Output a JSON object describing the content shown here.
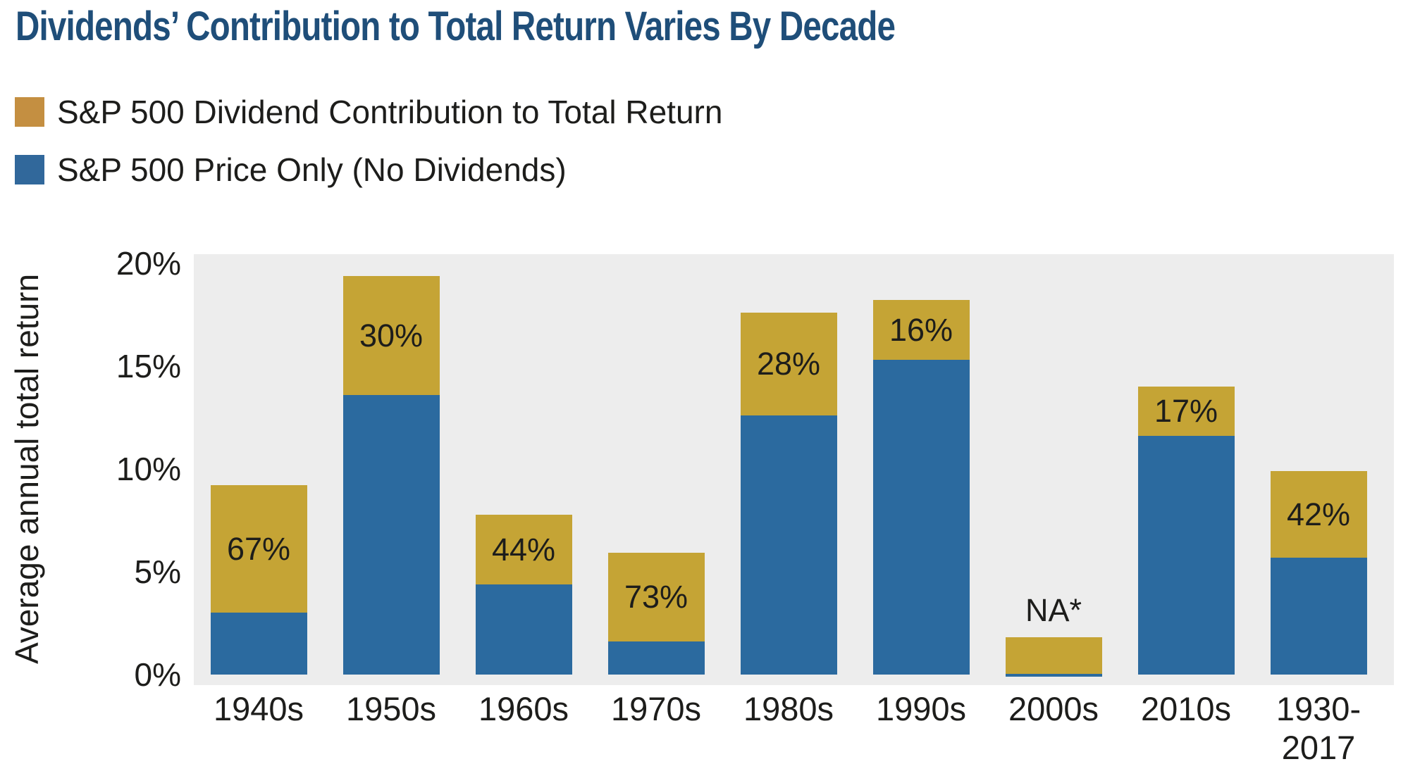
{
  "title": "Dividends’ Contribution to Total Return Varies By Decade",
  "colors": {
    "title_blue": "#1F4E79",
    "legend_dividend_gold": "#C48F41",
    "legend_price_blue": "#31689B",
    "bar_dividend_gold": "#C5A435",
    "bar_price_blue": "#2B6A9F",
    "plot_background": "#EDEDED",
    "text": "#1D1D1B"
  },
  "legend": {
    "items": [
      {
        "label": "S&P 500 Dividend Contribution to Total Return",
        "color": "#C48F41"
      },
      {
        "label": "S&P 500 Price Only (No Dividends)",
        "color": "#31689B"
      }
    ]
  },
  "chart_data": {
    "type": "bar",
    "stacked": true,
    "title": "Dividends’ Contribution to Total Return Varies By Decade",
    "xlabel": "",
    "ylabel": "Average annual total return",
    "ylim": [
      0,
      20.4
    ],
    "grid": false,
    "legend_position": "top-left",
    "yticks": [
      {
        "label": "0%",
        "value": 0
      },
      {
        "label": "5%",
        "value": 5
      },
      {
        "label": "10%",
        "value": 10
      },
      {
        "label": "15%",
        "value": 15
      },
      {
        "label": "20%",
        "value": 20
      }
    ],
    "series": [
      {
        "name": "S&P 500 Price Only (No Dividends)",
        "color": "#2B6A9F"
      },
      {
        "name": "S&P 500 Dividend Contribution to Total Return",
        "color": "#C5A435"
      }
    ],
    "bars": [
      {
        "category": "1940s",
        "price_only_pct": 3.0,
        "dividend_pct": 6.2,
        "total_pct": 9.2,
        "contribution_label": "67%"
      },
      {
        "category": "1950s",
        "price_only_pct": 13.6,
        "dividend_pct": 5.8,
        "total_pct": 19.4,
        "contribution_label": "30%"
      },
      {
        "category": "1960s",
        "price_only_pct": 4.4,
        "dividend_pct": 3.4,
        "total_pct": 7.8,
        "contribution_label": "44%"
      },
      {
        "category": "1970s",
        "price_only_pct": 1.6,
        "dividend_pct": 4.3,
        "total_pct": 5.9,
        "contribution_label": "73%"
      },
      {
        "category": "1980s",
        "price_only_pct": 12.6,
        "dividend_pct": 5.0,
        "total_pct": 17.6,
        "contribution_label": "28%"
      },
      {
        "category": "1990s",
        "price_only_pct": 15.3,
        "dividend_pct": 2.9,
        "total_pct": 18.2,
        "contribution_label": "16%"
      },
      {
        "category": "2000s",
        "price_only_pct": 0,
        "dividend_pct": 1.8,
        "total_pct": 1.8,
        "contribution_label": "NA*",
        "label_above": true,
        "baseline_strip": true
      },
      {
        "category": "2010s",
        "price_only_pct": 11.6,
        "dividend_pct": 2.4,
        "total_pct": 14.0,
        "contribution_label": "17%"
      },
      {
        "category": "1930-2017",
        "category_lines": [
          "1930-",
          "2017"
        ],
        "price_only_pct": 5.7,
        "dividend_pct": 4.2,
        "total_pct": 9.9,
        "contribution_label": "42%"
      }
    ]
  }
}
